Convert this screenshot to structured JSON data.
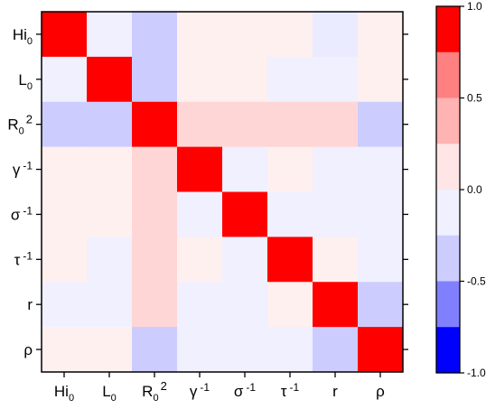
{
  "chart_data": {
    "type": "heatmap",
    "title": "",
    "xlabel": "",
    "ylabel": "",
    "labels": [
      {
        "base": "Hi",
        "sub": "0",
        "sup": ""
      },
      {
        "base": "L",
        "sub": "0",
        "sup": ""
      },
      {
        "base": "R",
        "sub": "0",
        "sup": "2"
      },
      {
        "base": "γ",
        "sub": "",
        "sup": "-1"
      },
      {
        "base": "σ",
        "sub": "",
        "sup": "-1"
      },
      {
        "base": "τ",
        "sub": "",
        "sup": "-1"
      },
      {
        "base": "r",
        "sub": "",
        "sup": ""
      },
      {
        "base": "ρ",
        "sub": "",
        "sup": ""
      }
    ],
    "matrix": [
      [
        1.0,
        -0.05,
        -0.25,
        0.05,
        0.05,
        0.05,
        -0.1,
        0.05
      ],
      [
        -0.05,
        1.0,
        -0.25,
        0.05,
        0.05,
        -0.05,
        -0.05,
        0.05
      ],
      [
        -0.25,
        -0.25,
        1.0,
        0.25,
        0.25,
        0.25,
        0.25,
        -0.25
      ],
      [
        0.05,
        0.05,
        0.25,
        1.0,
        -0.05,
        0.05,
        -0.05,
        -0.05
      ],
      [
        0.05,
        0.05,
        0.25,
        -0.05,
        1.0,
        -0.05,
        -0.05,
        -0.05
      ],
      [
        0.05,
        -0.05,
        0.25,
        0.05,
        -0.05,
        1.0,
        0.05,
        -0.05
      ],
      [
        -0.05,
        -0.05,
        0.25,
        -0.05,
        -0.05,
        0.05,
        1.0,
        -0.25
      ],
      [
        0.05,
        0.05,
        -0.25,
        -0.05,
        -0.05,
        -0.05,
        -0.25,
        1.0
      ]
    ],
    "colorbar": {
      "range": [
        -1.0,
        1.0
      ],
      "ticks": [
        {
          "value": 1.0,
          "label": "1.0"
        },
        {
          "value": 0.5,
          "label": "0.5"
        },
        {
          "value": 0.0,
          "label": "0.0"
        },
        {
          "value": -0.5,
          "label": "-0.5"
        },
        {
          "value": -1.0,
          "label": "-1.0"
        }
      ],
      "bins": [
        {
          "from": 0.75,
          "to": 1.0,
          "color": "#ff0000"
        },
        {
          "from": 0.5,
          "to": 0.75,
          "color": "#ff8080"
        },
        {
          "from": 0.25,
          "to": 0.5,
          "color": "#ffb3b3"
        },
        {
          "from": 0.0,
          "to": 0.25,
          "color": "#ffe5e5"
        },
        {
          "from": -0.25,
          "to": 0.0,
          "color": "#f0f0ff"
        },
        {
          "from": -0.5,
          "to": -0.25,
          "color": "#ccccff"
        },
        {
          "from": -0.75,
          "to": -0.5,
          "color": "#8080ff"
        },
        {
          "from": -1.0,
          "to": -0.75,
          "color": "#0000ff"
        }
      ]
    },
    "cell_colors": {
      "1.0": "#ff0000",
      "0.25": "#ffd6d6",
      "0.05": "#fff0f0",
      "-0.05": "#f0f0ff",
      "-0.1": "#ebebff",
      "-0.25": "#ccccff"
    },
    "grid": false,
    "legend_position": "right"
  }
}
